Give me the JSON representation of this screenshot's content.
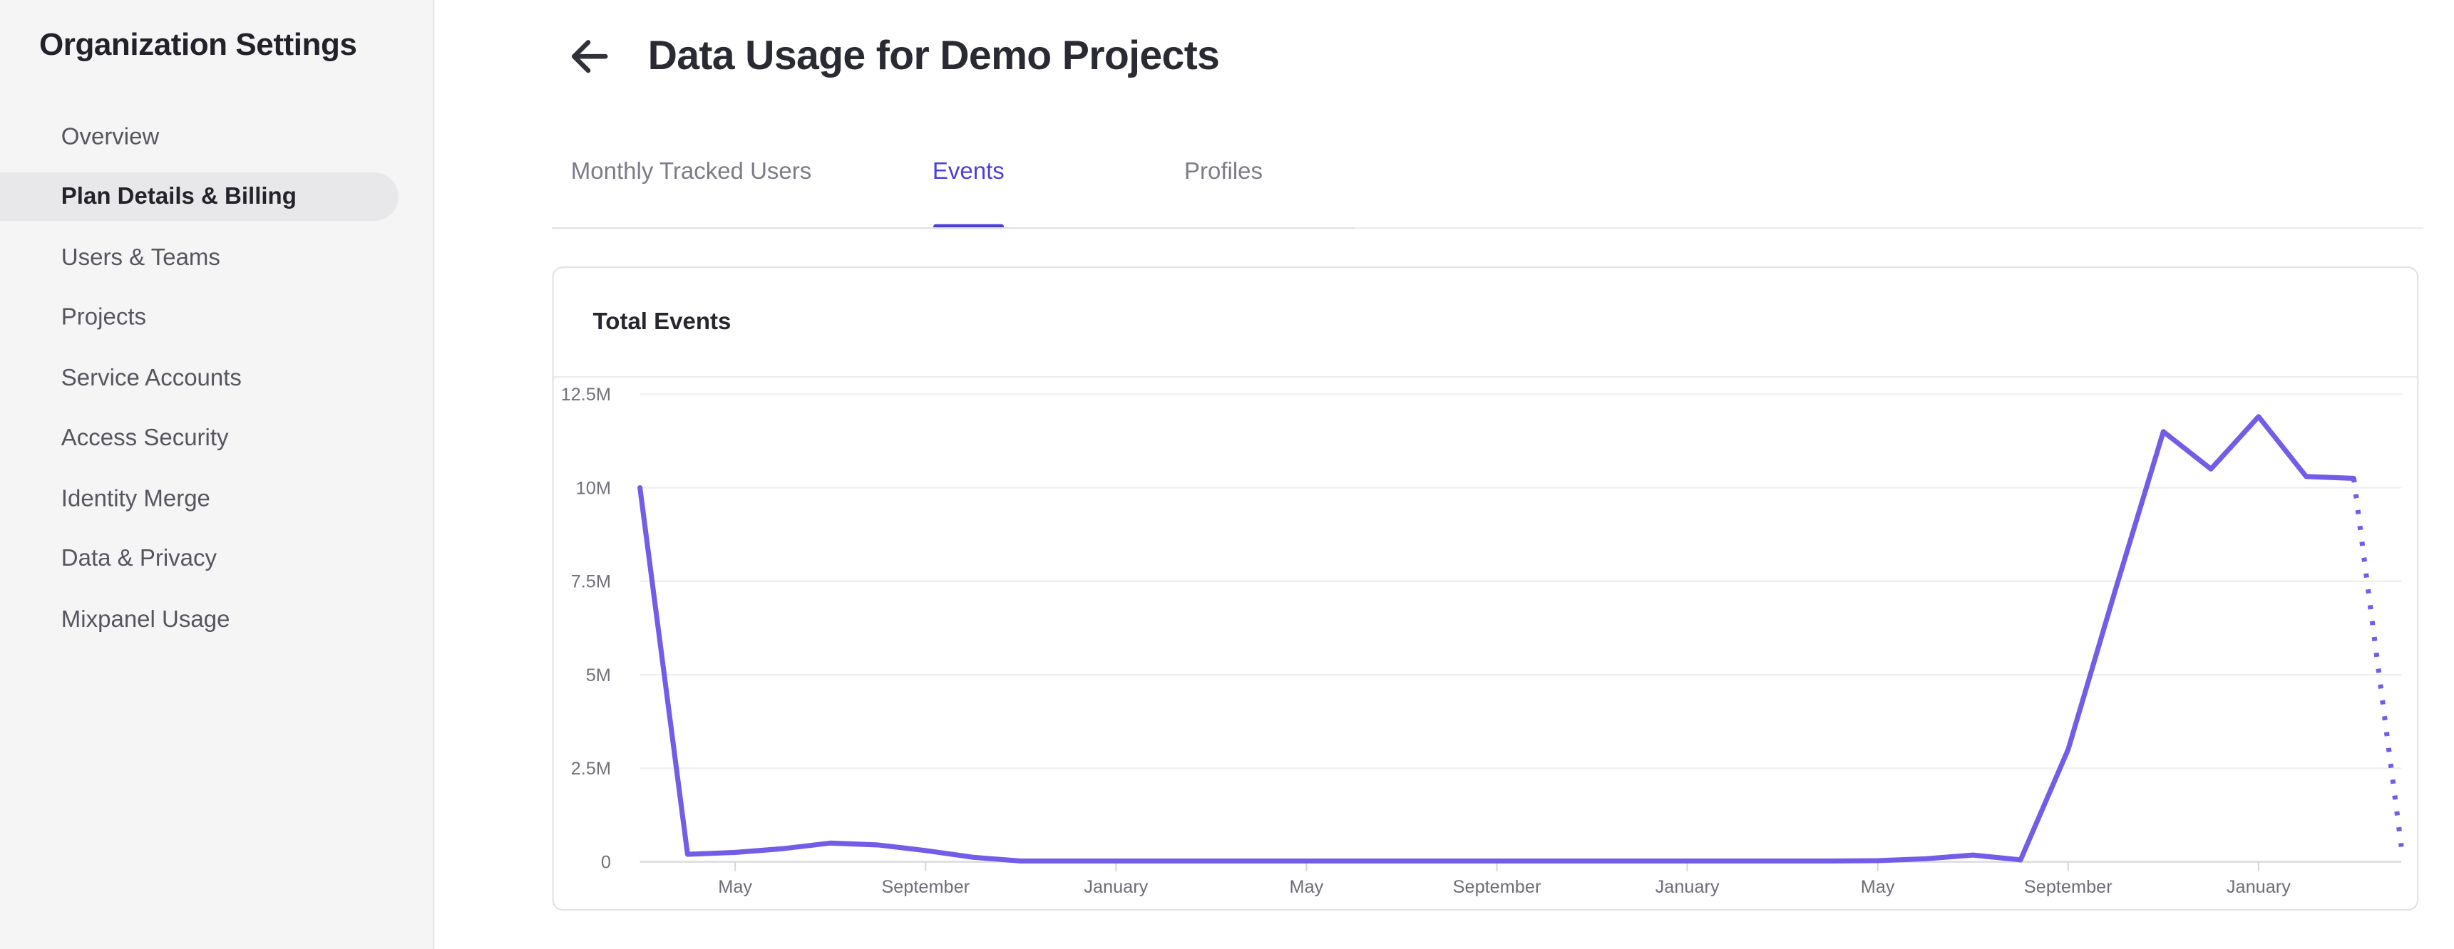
{
  "sidebar": {
    "title": "Organization Settings",
    "items": [
      {
        "label": "Overview",
        "active": false
      },
      {
        "label": "Plan Details & Billing",
        "active": true
      },
      {
        "label": "Users & Teams",
        "active": false
      },
      {
        "label": "Projects",
        "active": false
      },
      {
        "label": "Service Accounts",
        "active": false
      },
      {
        "label": "Access Security",
        "active": false
      },
      {
        "label": "Identity Merge",
        "active": false
      },
      {
        "label": "Data & Privacy",
        "active": false
      },
      {
        "label": "Mixpanel Usage",
        "active": false
      }
    ]
  },
  "header": {
    "title": "Data Usage for Demo Projects",
    "back_icon": "arrow-left"
  },
  "tabs": [
    {
      "label": "Monthly Tracked Users",
      "active": false
    },
    {
      "label": "Events",
      "active": true
    },
    {
      "label": "Profiles",
      "active": false
    }
  ],
  "card": {
    "title": "Total Events"
  },
  "colors": {
    "accent_indigo": "#4c40d9",
    "chart_line_purple": "#745ce8",
    "sidebar_bg": "#f5f5f6",
    "active_item_pill": "#e8e8ea",
    "grid_line": "#eeeeef",
    "axis_line": "#dfdfe2",
    "axis_text": "#71717b"
  },
  "chart_data": {
    "type": "line",
    "title": "Total Events",
    "ylim": [
      0,
      12.5
    ],
    "y_ticks": [
      "12.5M",
      "10M",
      "7.5M",
      "5M",
      "2.5M",
      "0"
    ],
    "y_tick_values": [
      12.5,
      10,
      7.5,
      5,
      2.5,
      0
    ],
    "x_tick_labels": [
      "May",
      "September",
      "January",
      "May",
      "September",
      "January",
      "May",
      "September",
      "January"
    ],
    "x_tick_indices": [
      2,
      6,
      10,
      14,
      18,
      22,
      26,
      30,
      34
    ],
    "values_millions": [
      10,
      0.2,
      0.25,
      0.35,
      0.5,
      0.45,
      0.3,
      0.12,
      0.02,
      0.02,
      0.02,
      0.02,
      0.02,
      0.02,
      0.02,
      0.02,
      0.02,
      0.02,
      0.02,
      0.02,
      0.02,
      0.02,
      0.02,
      0.02,
      0.02,
      0.02,
      0.03,
      0.08,
      0.18,
      0.05,
      3.0,
      7.3,
      11.5,
      10.5,
      11.9,
      10.3,
      10.25
    ],
    "projected_tail": {
      "value_millions": 0.4,
      "style": "dotted"
    },
    "line_color": "#745ce8",
    "grid": true,
    "legend": "none"
  }
}
